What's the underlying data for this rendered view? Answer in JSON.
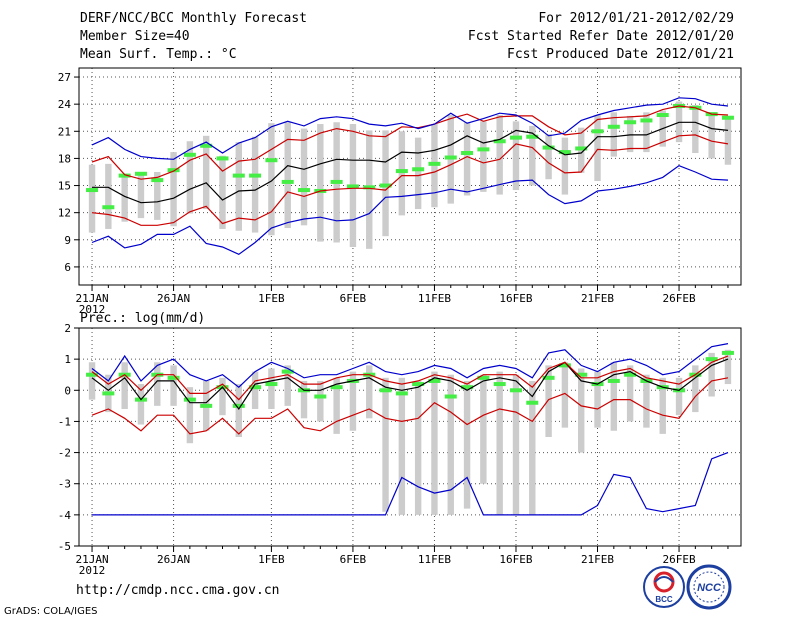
{
  "header": {
    "title": "DERF/NCC/BCC Monthly Forecast",
    "member_size": "Member Size=40",
    "variable1": "Mean Surf. Temp.: °C",
    "forecast_period": "For 2012/01/21-2012/02/29",
    "start_date": "Fcst Started Refer Date 2012/01/20",
    "produce_date": "Fcst Produced Date 2012/01/21"
  },
  "footer": {
    "url": "http://cmdp.ncc.cma.gov.cn",
    "grads": "GrADS: COLA/IGES",
    "logo1_text": "BCC",
    "logo2_text": "NCC"
  },
  "chart_data": [
    {
      "type": "line",
      "title": "Mean Surf. Temp.: °C",
      "x_tick_labels": [
        "21JAN",
        "26JAN",
        "1FEB",
        "6FEB",
        "11FEB",
        "16FEB",
        "21FEB",
        "26FEB"
      ],
      "x_tick_days": [
        1,
        6,
        12,
        17,
        22,
        27,
        32,
        37
      ],
      "year_label": "2012",
      "ylim": [
        4,
        28
      ],
      "y_ticks": [
        6,
        9,
        12,
        15,
        18,
        21,
        24,
        27
      ],
      "series": [
        {
          "name": "ensemble mean",
          "color": "#000000",
          "values": [
            14.8,
            14.8,
            13.8,
            13.1,
            13.2,
            13.6,
            14.6,
            15.3,
            13.4,
            14.4,
            14.5,
            15.5,
            17.2,
            16.8,
            17.4,
            17.9,
            17.8,
            17.8,
            17.6,
            18.7,
            18.6,
            18.9,
            19.5,
            20.5,
            19.7,
            20.1,
            21.1,
            20.8,
            19.4,
            18.4,
            18.6,
            20.4,
            20.4,
            20.6,
            20.6,
            21.3,
            22.0,
            22.0,
            21.3,
            21.1
          ]
        },
        {
          "name": "spread upper",
          "color": "#cc0000",
          "values": [
            17.6,
            18.2,
            16.2,
            15.7,
            15.9,
            16.6,
            17.8,
            18.5,
            16.6,
            17.7,
            17.9,
            19.0,
            20.1,
            20.0,
            20.8,
            21.3,
            21.0,
            20.5,
            20.4,
            21.5,
            21.4,
            21.8,
            22.4,
            22.9,
            22.1,
            22.6,
            22.7,
            22.7,
            21.5,
            20.6,
            20.8,
            22.3,
            22.5,
            22.6,
            22.7,
            23.4,
            23.8,
            23.6,
            22.9,
            22.8
          ]
        },
        {
          "name": "spread lower",
          "color": "#cc0000",
          "values": [
            12.0,
            11.8,
            11.4,
            10.6,
            10.6,
            10.9,
            12.1,
            12.7,
            10.8,
            11.4,
            11.2,
            12.1,
            14.3,
            13.8,
            14.4,
            14.6,
            14.7,
            14.7,
            14.5,
            16.1,
            16.1,
            16.5,
            17.3,
            18.2,
            17.5,
            17.9,
            19.6,
            19.2,
            17.5,
            16.4,
            16.5,
            19.0,
            18.9,
            19.1,
            19.1,
            19.8,
            20.5,
            20.6,
            19.9,
            19.6
          ]
        },
        {
          "name": "ensemble max",
          "color": "#0000cc",
          "values": [
            19.5,
            20.3,
            19.0,
            18.2,
            18.0,
            17.9,
            19.0,
            19.8,
            18.6,
            19.7,
            20.3,
            21.5,
            22.1,
            21.6,
            22.4,
            22.6,
            22.4,
            21.8,
            21.6,
            21.9,
            21.3,
            21.8,
            23.0,
            21.9,
            22.4,
            23.0,
            22.8,
            21.9,
            20.5,
            20.8,
            22.2,
            22.8,
            23.3,
            23.6,
            23.9,
            24.0,
            24.7,
            24.6,
            24.0,
            23.8
          ]
        },
        {
          "name": "ensemble min",
          "color": "#0000cc",
          "values": [
            8.7,
            9.4,
            8.1,
            8.5,
            9.6,
            9.6,
            10.5,
            8.6,
            8.2,
            7.4,
            8.7,
            10.3,
            10.9,
            11.3,
            11.5,
            11.1,
            11.2,
            11.9,
            13.7,
            13.8,
            14.0,
            14.2,
            14.6,
            14.3,
            14.7,
            15.1,
            15.5,
            15.6,
            14.0,
            13.0,
            13.3,
            14.4,
            14.6,
            14.9,
            15.3,
            15.9,
            17.2,
            16.5,
            15.7,
            15.6
          ]
        },
        {
          "name": "observed climate",
          "color": "#44ee44",
          "values": [
            14.5,
            12.6,
            16.1,
            16.3,
            15.6,
            16.7,
            18.4,
            19.4,
            18.0,
            16.1,
            16.1,
            17.8,
            15.4,
            14.5,
            14.4,
            15.4,
            14.9,
            14.8,
            15.0,
            16.6,
            16.8,
            17.4,
            18.1,
            18.6,
            19.0,
            19.9,
            20.3,
            20.4,
            19.2,
            18.7,
            19.1,
            21.0,
            21.5,
            22.0,
            22.2,
            22.8,
            23.8,
            23.6,
            22.9,
            22.5
          ]
        }
      ],
      "boxes": {
        "upper": [
          17.3,
          17.4,
          16.0,
          16.5,
          16.5,
          18.7,
          19.9,
          20.5,
          18.3,
          19.8,
          20.4,
          21.9,
          22.0,
          21.3,
          21.8,
          22.0,
          21.8,
          21.1,
          21.1,
          21.0,
          20.3,
          21.8,
          22.8,
          22.0,
          22.1,
          22.8,
          22.1,
          21.6,
          20.7,
          20.3,
          21.4,
          22.8,
          23.1,
          22.7,
          23.1,
          23.3,
          24.3,
          23.9,
          23.1,
          22.5
        ],
        "lower": [
          9.8,
          10.2,
          11.0,
          11.4,
          11.2,
          10.5,
          11.9,
          12.4,
          10.2,
          10.0,
          9.8,
          9.5,
          10.3,
          10.6,
          8.8,
          8.7,
          8.2,
          8.0,
          9.4,
          11.7,
          12.4,
          12.6,
          13.0,
          13.9,
          14.3,
          14.0,
          14.5,
          15.0,
          15.7,
          14.0,
          16.4,
          15.5,
          18.2,
          18.7,
          18.7,
          19.3,
          19.8,
          18.6,
          18.0,
          17.3
        ]
      }
    },
    {
      "type": "line",
      "title": "Prec.: log(mm/d)",
      "x_tick_labels": [
        "21JAN",
        "26JAN",
        "1FEB",
        "6FEB",
        "11FEB",
        "16FEB",
        "21FEB",
        "26FEB"
      ],
      "x_tick_days": [
        1,
        6,
        12,
        17,
        22,
        27,
        32,
        37
      ],
      "year_label": "2012",
      "ylim": [
        -5,
        2
      ],
      "y_ticks": [
        -5,
        -4,
        -3,
        -2,
        -1,
        0,
        1,
        2
      ],
      "series": [
        {
          "name": "ensemble mean",
          "color": "#000000",
          "values": [
            0.4,
            0.0,
            0.4,
            -0.3,
            0.3,
            0.3,
            -0.4,
            -0.4,
            0.1,
            -0.6,
            0.2,
            0.3,
            0.4,
            0.0,
            0.0,
            0.2,
            0.3,
            0.4,
            0.1,
            0.0,
            0.1,
            0.4,
            0.3,
            0.0,
            0.3,
            0.4,
            0.3,
            -0.2,
            0.6,
            0.9,
            0.3,
            0.2,
            0.5,
            0.6,
            0.3,
            0.1,
            0.0,
            0.4,
            0.8,
            1.0
          ]
        },
        {
          "name": "spread upper",
          "color": "#cc0000",
          "values": [
            0.6,
            0.2,
            0.5,
            0.0,
            0.5,
            0.5,
            -0.1,
            -0.1,
            0.2,
            -0.3,
            0.3,
            0.4,
            0.5,
            0.2,
            0.2,
            0.4,
            0.5,
            0.5,
            0.3,
            0.2,
            0.3,
            0.5,
            0.4,
            0.2,
            0.5,
            0.5,
            0.5,
            0.1,
            0.7,
            0.9,
            0.4,
            0.4,
            0.6,
            0.7,
            0.4,
            0.3,
            0.2,
            0.5,
            0.9,
            1.1
          ]
        },
        {
          "name": "spread lower",
          "color": "#cc0000",
          "values": [
            -0.8,
            -0.6,
            -0.9,
            -1.3,
            -0.8,
            -0.8,
            -1.4,
            -1.3,
            -0.9,
            -1.4,
            -0.9,
            -0.9,
            -0.6,
            -1.2,
            -1.3,
            -1.0,
            -0.8,
            -0.6,
            -0.9,
            -1.0,
            -0.9,
            -0.4,
            -0.7,
            -1.1,
            -0.8,
            -0.6,
            -0.7,
            -1.0,
            -0.3,
            -0.1,
            -0.5,
            -0.6,
            -0.3,
            -0.3,
            -0.6,
            -0.8,
            -0.9,
            -0.2,
            0.3,
            0.4
          ]
        },
        {
          "name": "ensemble max",
          "color": "#0000cc",
          "values": [
            0.7,
            0.3,
            1.1,
            0.3,
            0.8,
            1.0,
            0.5,
            0.3,
            0.5,
            0.1,
            0.6,
            0.9,
            0.7,
            0.4,
            0.5,
            0.5,
            0.7,
            0.9,
            0.6,
            0.5,
            0.6,
            0.8,
            0.7,
            0.4,
            0.7,
            0.8,
            0.7,
            0.4,
            1.2,
            1.3,
            0.8,
            0.6,
            0.9,
            1.0,
            0.8,
            0.5,
            0.6,
            1.0,
            1.4,
            1.5
          ]
        },
        {
          "name": "ensemble min",
          "color": "#0000cc",
          "values": [
            -4.0,
            -4.0,
            -4.0,
            -4.0,
            -4.0,
            -4.0,
            -4.0,
            -4.0,
            -4.0,
            -4.0,
            -4.0,
            -4.0,
            -4.0,
            -4.0,
            -4.0,
            -4.0,
            -4.0,
            -4.0,
            -4.0,
            -2.8,
            -3.1,
            -3.3,
            -3.2,
            -2.8,
            -4.0,
            -4.0,
            -4.0,
            -4.0,
            -4.0,
            -4.0,
            -4.0,
            -3.7,
            -2.7,
            -2.8,
            -3.8,
            -3.9,
            -3.8,
            -3.7,
            -2.2,
            -2.0
          ]
        },
        {
          "name": "observed climate",
          "color": "#44ee44",
          "values": [
            0.5,
            -0.1,
            0.5,
            -0.3,
            0.5,
            0.4,
            -0.3,
            -0.5,
            0.1,
            -0.5,
            0.1,
            0.2,
            0.6,
            0.0,
            -0.2,
            0.1,
            0.3,
            0.5,
            0.0,
            -0.1,
            0.2,
            0.3,
            -0.2,
            0.1,
            0.4,
            0.2,
            0.0,
            -0.4,
            0.4,
            0.8,
            0.5,
            0.2,
            0.3,
            0.5,
            0.3,
            0.1,
            0.0,
            0.5,
            1.0,
            1.2
          ]
        }
      ],
      "boxes": {
        "upper": [
          0.9,
          0.5,
          0.9,
          0.2,
          0.9,
          0.8,
          0.1,
          0.3,
          0.4,
          0.2,
          0.6,
          0.7,
          0.8,
          0.3,
          0.3,
          0.4,
          0.6,
          0.8,
          0.4,
          0.4,
          0.3,
          0.6,
          0.5,
          0.3,
          0.5,
          0.6,
          0.5,
          0.3,
          0.8,
          0.9,
          0.7,
          0.6,
          0.9,
          0.8,
          0.5,
          0.4,
          0.4,
          0.8,
          1.2,
          1.3
        ],
        "lower": [
          -0.3,
          -0.7,
          -0.6,
          -1.1,
          -0.5,
          -0.5,
          -1.7,
          -1.3,
          -0.8,
          -1.5,
          -0.6,
          -0.6,
          -0.5,
          -0.9,
          -1.0,
          -1.4,
          -1.3,
          -0.9,
          -3.9,
          -4.0,
          -4.0,
          -4.0,
          -4.0,
          -3.8,
          -3.0,
          -4.0,
          -4.0,
          -4.0,
          -1.5,
          -1.2,
          -2.0,
          -1.2,
          -1.3,
          -1.0,
          -1.2,
          -1.4,
          -0.8,
          -0.7,
          -0.2,
          0.2
        ]
      }
    }
  ]
}
